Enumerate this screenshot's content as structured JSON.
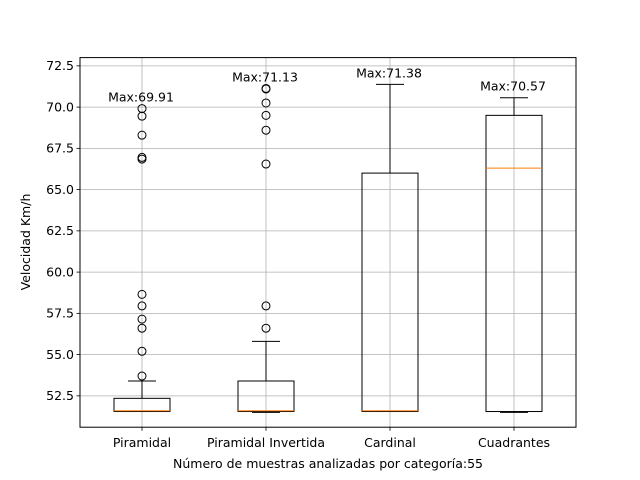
{
  "chart_data": {
    "type": "box",
    "categories": [
      "Piramidal",
      "Piramidal Invertida",
      "Cardinal",
      "Cuadrantes"
    ],
    "xlabel": "Número de muestras analizadas por categoría:55",
    "ylabel": "Velocidad Km/h",
    "ylim": [
      50.6,
      73.0
    ],
    "yticks": [
      52.5,
      55.0,
      57.5,
      60.0,
      62.5,
      65.0,
      67.5,
      70.0,
      72.5
    ],
    "ytick_labels": [
      "52.5",
      "55.0",
      "57.5",
      "60.0",
      "62.5",
      "65.0",
      "67.5",
      "70.0",
      "72.5"
    ],
    "grid": true,
    "boxes": [
      {
        "category": "Piramidal",
        "whisker_low": 51.55,
        "q1": 51.55,
        "median": 51.6,
        "q3": 52.35,
        "whisker_high": 53.4,
        "outliers": [
          53.7,
          55.2,
          56.6,
          57.15,
          57.95,
          58.65,
          66.85,
          66.95,
          68.3,
          69.45,
          69.91
        ],
        "max_label": "Max:69.91"
      },
      {
        "category": "Piramidal Invertida",
        "whisker_low": 51.5,
        "q1": 51.55,
        "median": 51.6,
        "q3": 53.4,
        "whisker_high": 55.8,
        "outliers": [
          56.6,
          57.95,
          66.55,
          68.6,
          69.5,
          70.25,
          71.1,
          71.13
        ],
        "max_label": "Max:71.13"
      },
      {
        "category": "Cardinal",
        "whisker_low": 51.55,
        "q1": 51.55,
        "median": 51.6,
        "q3": 66.0,
        "whisker_high": 71.38,
        "outliers": [],
        "max_label": "Max:71.38"
      },
      {
        "category": "Cuadrantes",
        "whisker_low": 51.5,
        "q1": 51.55,
        "median": 66.3,
        "q3": 69.5,
        "whisker_high": 70.57,
        "outliers": [],
        "max_label": "Max:70.57"
      }
    ],
    "colors": {
      "box": "#000000",
      "median": "#ff7f0e",
      "grid": "#b0b0b0"
    }
  }
}
